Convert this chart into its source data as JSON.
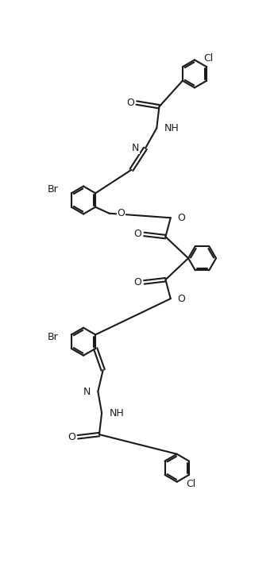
{
  "figsize": [
    3.5,
    7.14
  ],
  "dpi": 100,
  "bg": "#ffffff",
  "lc": "#1a1a1a",
  "lw": 1.5,
  "fs": 9,
  "r": 0.55,
  "sep": 0.07,
  "xlim": [
    -0.5,
    10.5
  ],
  "ylim": [
    0,
    21
  ]
}
